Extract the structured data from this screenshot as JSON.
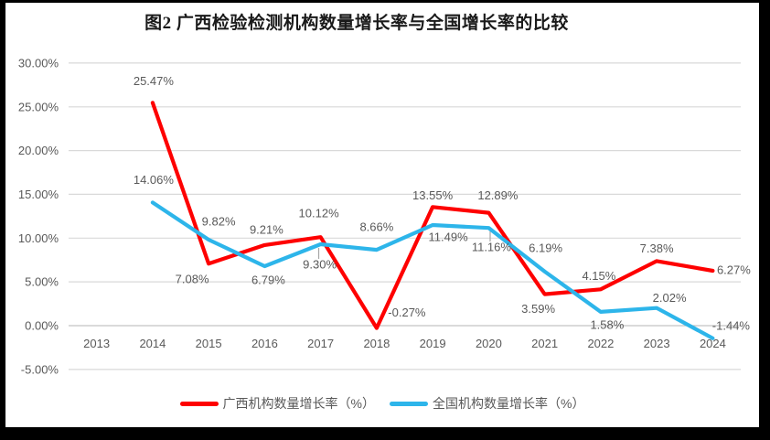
{
  "chart_data": {
    "type": "line",
    "title": "图2 广西检验检测机构数量增长率与全国增长率的比较",
    "categories": [
      "2013",
      "2014",
      "2015",
      "2016",
      "2017",
      "2018",
      "2019",
      "2020",
      "2021",
      "2022",
      "2023",
      "2024"
    ],
    "y_axis": {
      "min": -5,
      "max": 30,
      "step": 5,
      "tick_labels": [
        "30.00%",
        "25.00%",
        "20.00%",
        "15.00%",
        "10.00%",
        "5.00%",
        "0.00%",
        "-5.00%"
      ]
    },
    "series": [
      {
        "name": "广西机构数量增长率（%）",
        "color": "#FE0000",
        "values": [
          null,
          25.47,
          7.08,
          9.21,
          10.12,
          -0.27,
          13.55,
          12.89,
          3.59,
          4.15,
          7.38,
          6.27
        ]
      },
      {
        "name": "全国机构数量增长率（%）",
        "color": "#2DB5EA",
        "values": [
          null,
          14.06,
          9.82,
          6.79,
          9.3,
          8.66,
          11.49,
          11.16,
          6.19,
          1.58,
          2.02,
          -1.44
        ]
      }
    ],
    "data_labels": true,
    "grid": true,
    "legend_position": "bottom",
    "colors": {
      "grid_line": "#D9D9D9",
      "zero_line": "#C3C3C3",
      "axis_text": "#595959",
      "leader_line": "#A6A6A6"
    }
  }
}
